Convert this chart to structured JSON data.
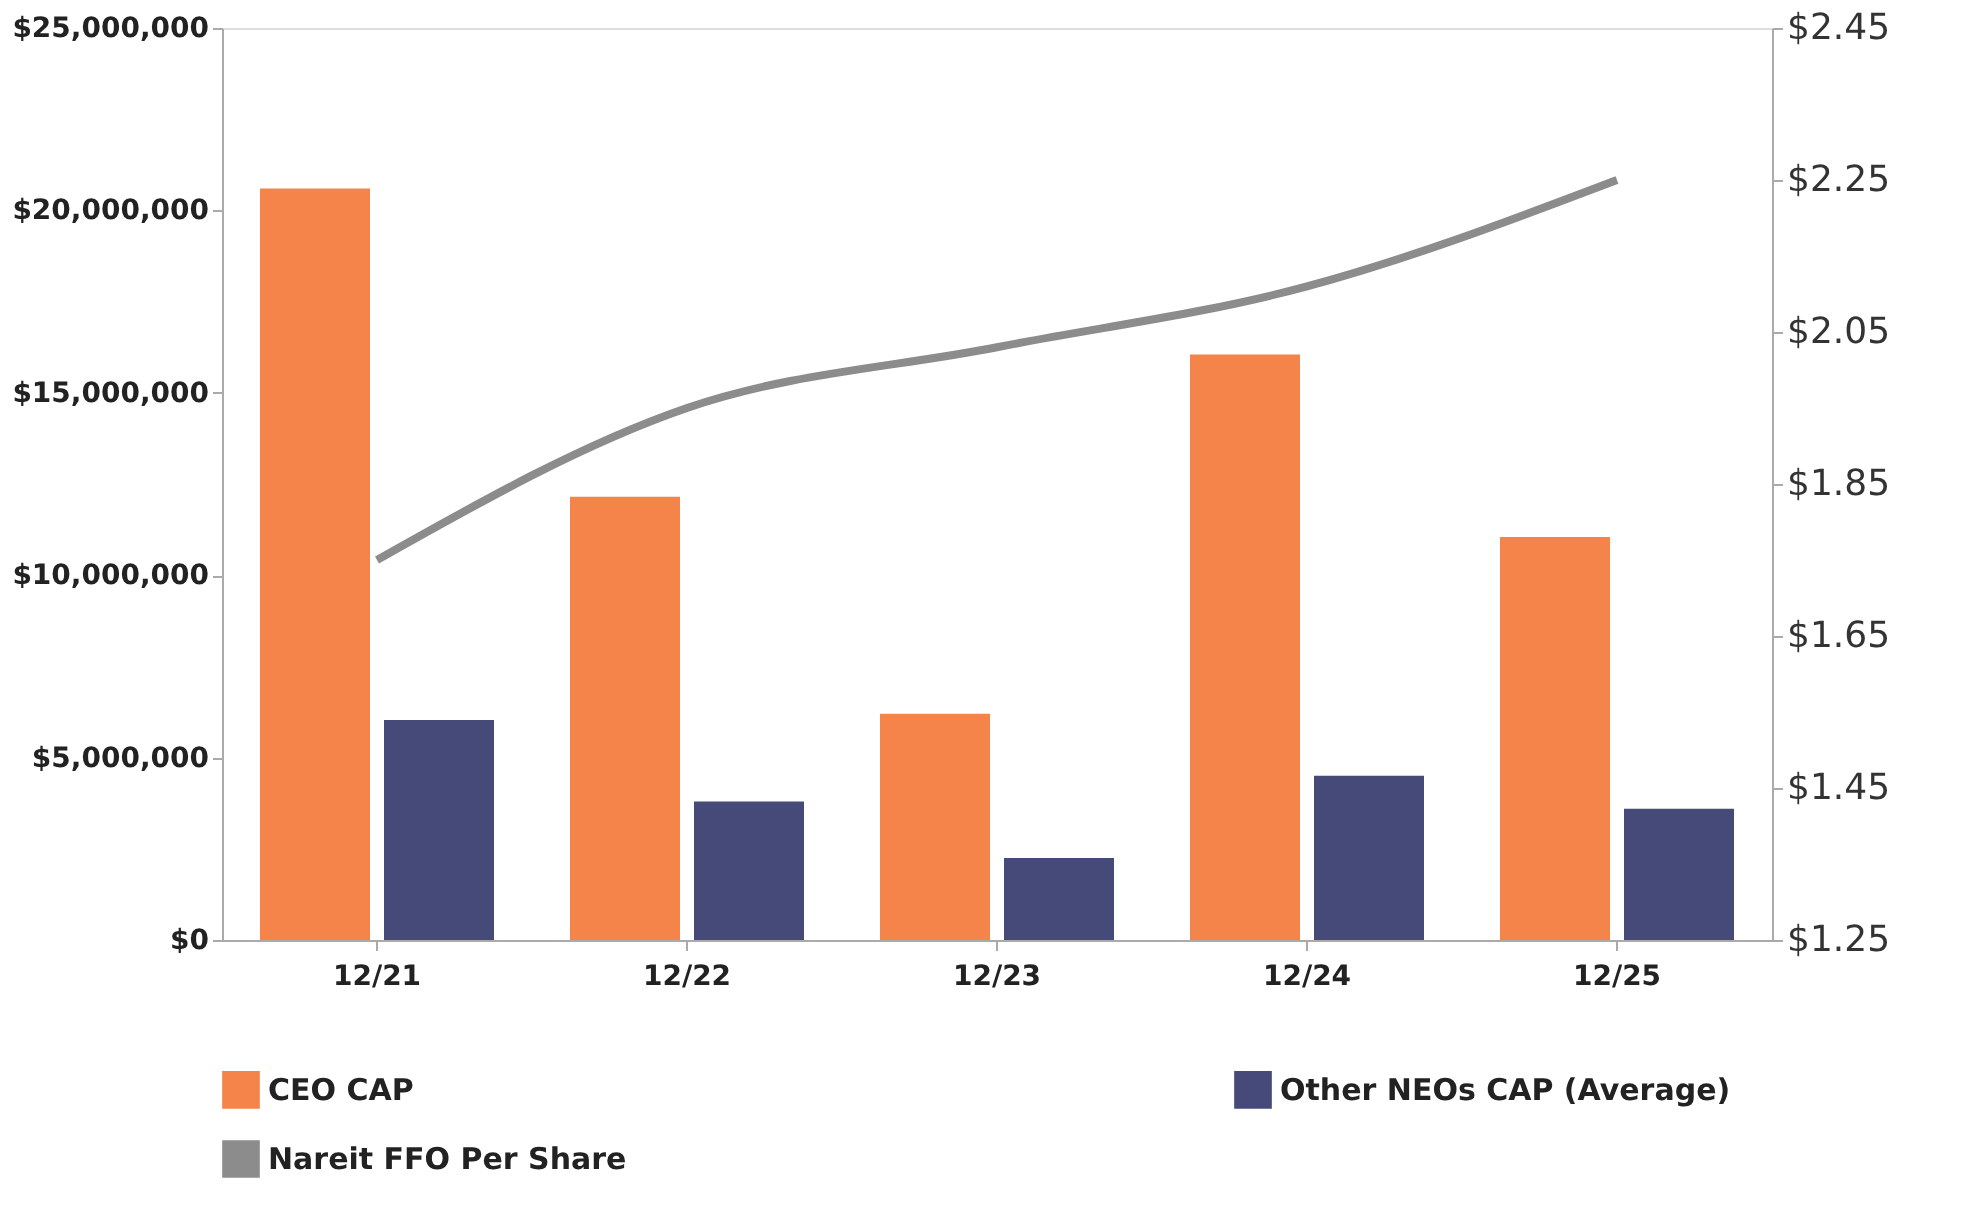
{
  "chart_data": {
    "type": "bar",
    "categories": [
      "12/21",
      "12/22",
      "12/23",
      "12/24",
      "12/25"
    ],
    "series": [
      {
        "name": "CEO CAP",
        "color": "#f4844a",
        "values": [
          20600000,
          12150000,
          6200000,
          16050000,
          11050000
        ]
      },
      {
        "name": "Other NEOs CAP (Average)",
        "color": "#464a78",
        "values": [
          6030000,
          3800000,
          2250000,
          4500000,
          3600000
        ]
      },
      {
        "name": "Nareit FFO Per Share",
        "type": "line",
        "axis": "y2",
        "color": "#8c8c8c",
        "values": [
          1.75,
          1.95,
          2.03,
          2.11,
          2.25
        ]
      }
    ],
    "ylim": [
      0,
      25000000
    ],
    "yticks": [
      {
        "value": 0,
        "label": "$0"
      },
      {
        "value": 5000000,
        "label": "$5,000,000"
      },
      {
        "value": 10000000,
        "label": "$10,000,000"
      },
      {
        "value": 15000000,
        "label": "$15,000,000"
      },
      {
        "value": 20000000,
        "label": "$20,000,000"
      },
      {
        "value": 25000000,
        "label": "$25,000,000"
      }
    ],
    "y2lim": [
      1.25,
      2.45
    ],
    "y2ticks": [
      {
        "value": 1.25,
        "label": "$1.25"
      },
      {
        "value": 1.45,
        "label": "$1.45"
      },
      {
        "value": 1.65,
        "label": "$1.65"
      },
      {
        "value": 1.85,
        "label": "$1.85"
      },
      {
        "value": 2.05,
        "label": "$2.05"
      },
      {
        "value": 2.25,
        "label": "$2.25"
      },
      {
        "value": 2.45,
        "label": "$2.45"
      }
    ],
    "grid": false,
    "legend": "bottom",
    "marker": "none",
    "line_style": "solid"
  }
}
